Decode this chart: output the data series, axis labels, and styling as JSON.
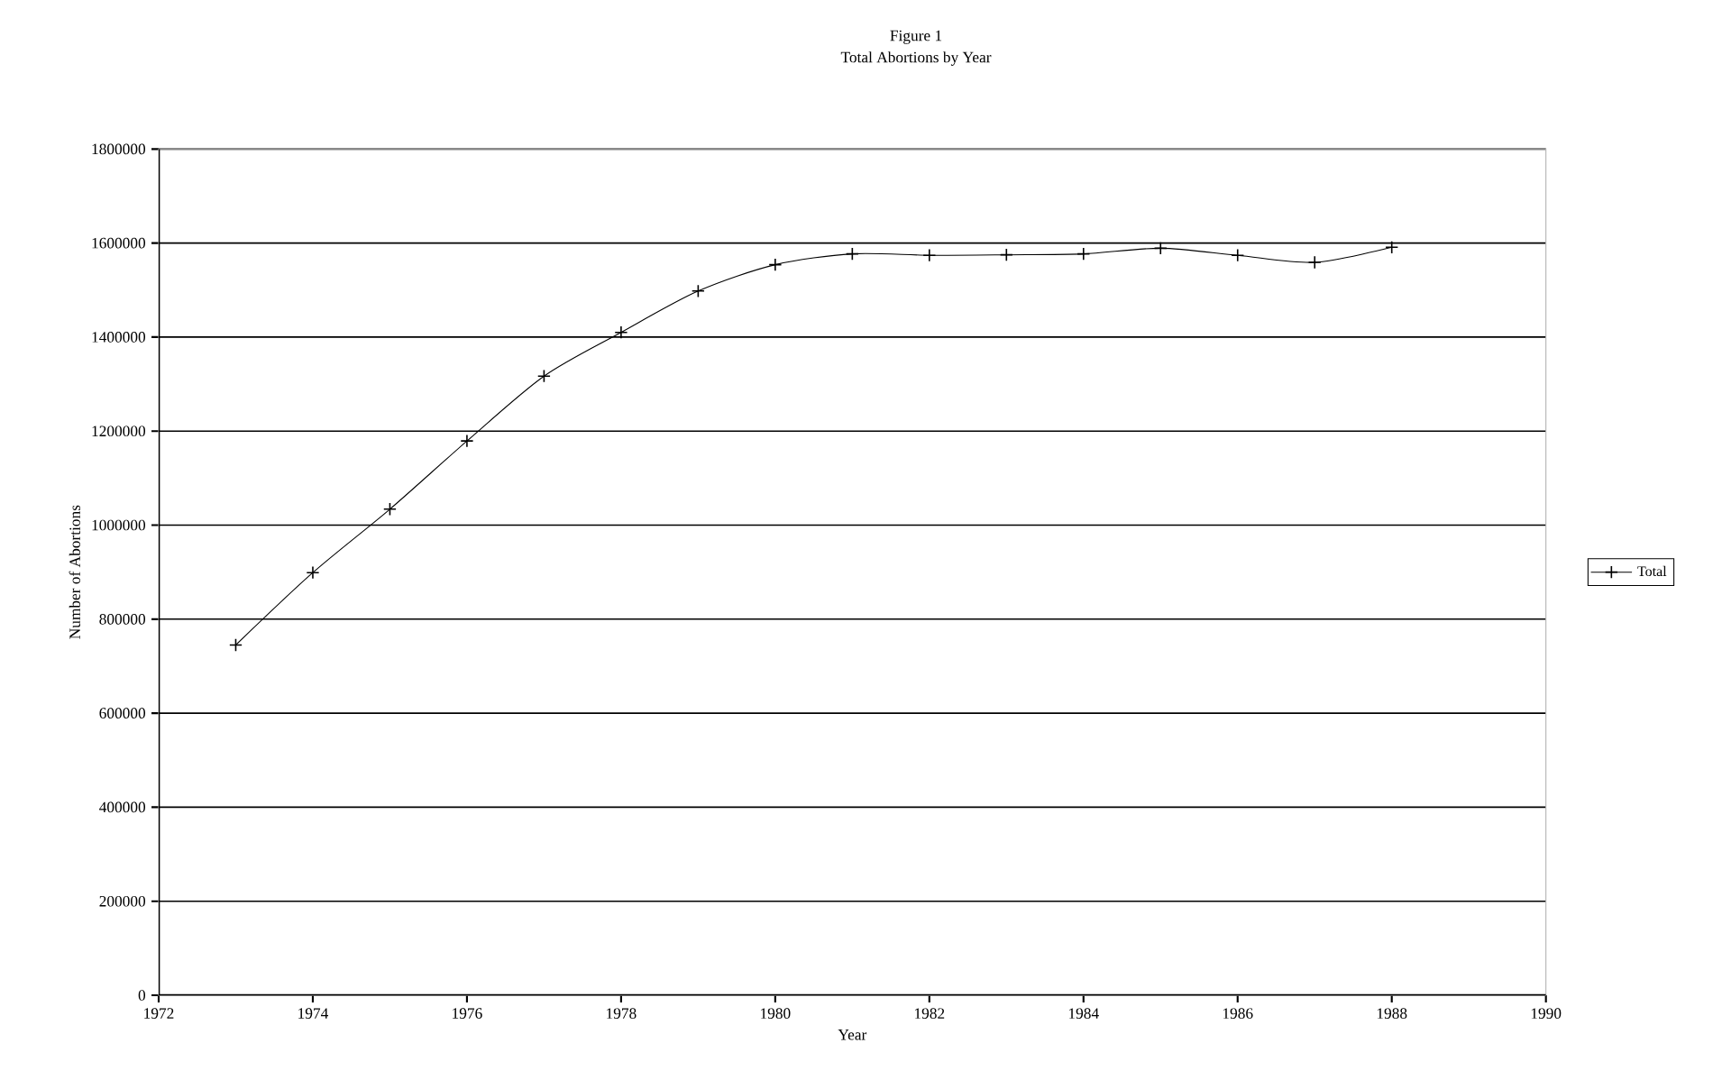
{
  "chart_data": {
    "type": "line",
    "title": "Figure 1",
    "subtitle": "Total Abortions by Year",
    "xlabel": "Year",
    "ylabel": "Number of Abortions",
    "x": [
      1973,
      1974,
      1975,
      1976,
      1977,
      1978,
      1979,
      1980,
      1981,
      1982,
      1983,
      1984,
      1985,
      1986,
      1987,
      1988
    ],
    "series": [
      {
        "name": "Total",
        "color": "#000000",
        "values": [
          745000,
          899000,
          1034000,
          1179000,
          1317000,
          1410000,
          1498000,
          1554000,
          1577000,
          1574000,
          1575000,
          1577000,
          1589000,
          1574000,
          1559000,
          1591000
        ]
      }
    ],
    "xlim": [
      1972,
      1990
    ],
    "xticks": [
      1972,
      1974,
      1976,
      1978,
      1980,
      1982,
      1984,
      1986,
      1988,
      1990
    ],
    "ylim": [
      0,
      1800000
    ],
    "yticks": [
      0,
      200000,
      400000,
      600000,
      800000,
      1000000,
      1200000,
      1400000,
      1600000,
      1800000
    ],
    "grid": "y",
    "legend": "right",
    "marker": "cross",
    "line_style": "solid"
  }
}
